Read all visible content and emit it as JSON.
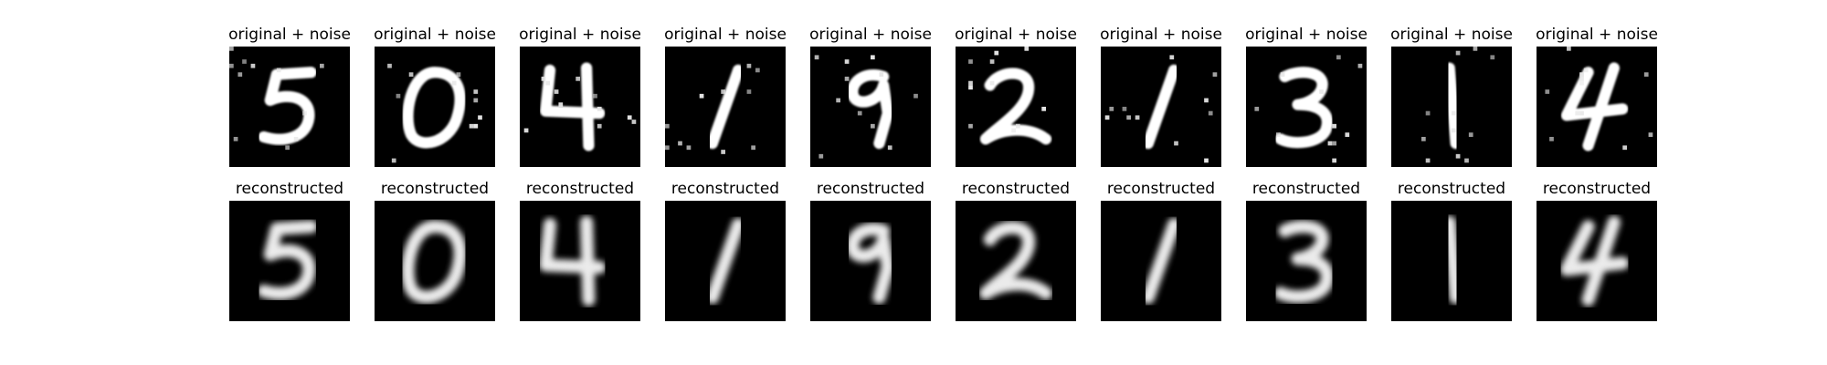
{
  "figure": {
    "columns": 10,
    "rows": [
      {
        "id": "noisy",
        "title": "original + noise",
        "style": "noisy",
        "panels": [
          {
            "digit": "5"
          },
          {
            "digit": "0"
          },
          {
            "digit": "4"
          },
          {
            "digit": "1"
          },
          {
            "digit": "9"
          },
          {
            "digit": "2"
          },
          {
            "digit": "1"
          },
          {
            "digit": "3"
          },
          {
            "digit": "1"
          },
          {
            "digit": "4"
          }
        ]
      },
      {
        "id": "reconstructed",
        "title": "reconstructed",
        "style": "clean",
        "panels": [
          {
            "digit": "5"
          },
          {
            "digit": "0"
          },
          {
            "digit": "4"
          },
          {
            "digit": "1"
          },
          {
            "digit": "9"
          },
          {
            "digit": "2"
          },
          {
            "digit": "1"
          },
          {
            "digit": "3"
          },
          {
            "digit": "1"
          },
          {
            "digit": "4"
          }
        ]
      }
    ],
    "colors": {
      "background": "#ffffff",
      "image_background": "#000000",
      "digit_stroke": "#ffffff",
      "noise_pixel": "#e6e6e6"
    }
  }
}
